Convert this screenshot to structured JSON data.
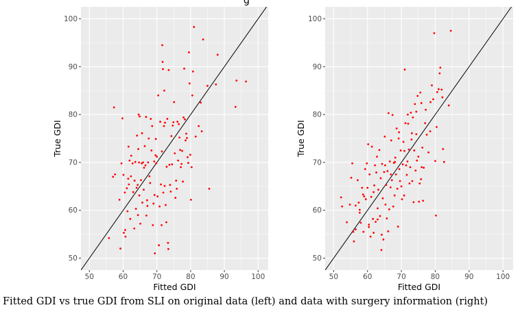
{
  "figure": {
    "caption": "Fitted GDI vs true GDI from SLI on original data (left) and data with surgery information (right)",
    "top_title_fragment": "g"
  },
  "colors": {
    "panel_bg": "#ebebeb",
    "gridline": "#ffffff",
    "point": "#ff0000",
    "reference_line": "#000000"
  },
  "chart_data": [
    {
      "type": "scatter",
      "name": "original data (left)",
      "xlabel": "Fitted GDI",
      "ylabel": "True GDI",
      "xlim": [
        47.5,
        103
      ],
      "ylim": [
        47.5,
        102.5
      ],
      "xticks": [
        50,
        60,
        70,
        80,
        90,
        100
      ],
      "yticks": [
        50,
        60,
        70,
        80,
        90,
        100
      ],
      "grid": true,
      "reference_line": "y = x",
      "points": [
        [
          55.8,
          54.2
        ],
        [
          57.0,
          67.0
        ],
        [
          57.3,
          81.5
        ],
        [
          57.6,
          67.5
        ],
        [
          58.9,
          62.2
        ],
        [
          59.2,
          52.0
        ],
        [
          59.5,
          69.8
        ],
        [
          59.8,
          79.2
        ],
        [
          60.1,
          67.4
        ],
        [
          60.2,
          55.3
        ],
        [
          60.5,
          63.7
        ],
        [
          60.6,
          55.9
        ],
        [
          60.7,
          54.5
        ],
        [
          61.1,
          64.6
        ],
        [
          61.3,
          59.8
        ],
        [
          61.5,
          66.6
        ],
        [
          61.6,
          73.3
        ],
        [
          61.7,
          65.4
        ],
        [
          61.9,
          70.4
        ],
        [
          62.1,
          58.2
        ],
        [
          62.3,
          67.1
        ],
        [
          62.4,
          71.4
        ],
        [
          62.8,
          69.8
        ],
        [
          63.0,
          63.8
        ],
        [
          63.3,
          56.2
        ],
        [
          63.4,
          66.2
        ],
        [
          63.6,
          70.1
        ],
        [
          63.8,
          60.3
        ],
        [
          64.0,
          64.7
        ],
        [
          64.1,
          75.6
        ],
        [
          64.3,
          65.3
        ],
        [
          64.4,
          59.0
        ],
        [
          64.5,
          72.8
        ],
        [
          64.6,
          80.0
        ],
        [
          64.7,
          70.0
        ],
        [
          64.8,
          63.1
        ],
        [
          64.9,
          79.6
        ],
        [
          65.1,
          57.2
        ],
        [
          65.3,
          66.3
        ],
        [
          65.5,
          69.8
        ],
        [
          65.6,
          76.1
        ],
        [
          65.7,
          61.6
        ],
        [
          65.9,
          70.0
        ],
        [
          66.1,
          64.3
        ],
        [
          66.2,
          68.9
        ],
        [
          66.4,
          73.4
        ],
        [
          66.6,
          69.4
        ],
        [
          66.8,
          79.5
        ],
        [
          66.9,
          58.9
        ],
        [
          67.1,
          62.1
        ],
        [
          67.2,
          60.9
        ],
        [
          67.4,
          70.0
        ],
        [
          67.6,
          75.0
        ],
        [
          67.8,
          67.1
        ],
        [
          68.0,
          65.7
        ],
        [
          68.2,
          79.1
        ],
        [
          68.4,
          72.5
        ],
        [
          68.6,
          77.6
        ],
        [
          68.8,
          56.9
        ],
        [
          69.0,
          61.4
        ],
        [
          69.2,
          70.2
        ],
        [
          69.3,
          63.2
        ],
        [
          69.4,
          51.0
        ],
        [
          69.6,
          71.5
        ],
        [
          69.7,
          74.9
        ],
        [
          69.8,
          69.8
        ],
        [
          70.0,
          71.2
        ],
        [
          70.2,
          62.9
        ],
        [
          70.4,
          84.0
        ],
        [
          70.6,
          52.7
        ],
        [
          70.8,
          60.8
        ],
        [
          71.0,
          78.5
        ],
        [
          71.2,
          65.4
        ],
        [
          71.4,
          56.9
        ],
        [
          71.5,
          72.3
        ],
        [
          71.6,
          94.5
        ],
        [
          71.7,
          91.0
        ],
        [
          71.8,
          89.5
        ],
        [
          71.9,
          63.7
        ],
        [
          72.1,
          77.6
        ],
        [
          72.2,
          85.0
        ],
        [
          72.3,
          65.1
        ],
        [
          72.4,
          78.3
        ],
        [
          72.6,
          61.1
        ],
        [
          72.8,
          57.5
        ],
        [
          72.9,
          69.1
        ],
        [
          73.1,
          79.1
        ],
        [
          73.3,
          53.2
        ],
        [
          73.4,
          51.9
        ],
        [
          73.5,
          89.3
        ],
        [
          73.7,
          69.5
        ],
        [
          73.9,
          65.3
        ],
        [
          74.1,
          63.9
        ],
        [
          74.3,
          75.5
        ],
        [
          74.5,
          69.6
        ],
        [
          74.7,
          77.7
        ],
        [
          74.9,
          78.4
        ],
        [
          75.1,
          82.6
        ],
        [
          75.3,
          71.9
        ],
        [
          75.5,
          62.6
        ],
        [
          75.7,
          66.2
        ],
        [
          75.9,
          64.5
        ],
        [
          76.1,
          78.5
        ],
        [
          76.3,
          70.4
        ],
        [
          76.5,
          78.0
        ],
        [
          76.7,
          75.2
        ],
        [
          76.9,
          72.6
        ],
        [
          77.1,
          69.0
        ],
        [
          77.3,
          69.7
        ],
        [
          77.5,
          72.4
        ],
        [
          77.7,
          66.0
        ],
        [
          77.9,
          79.4
        ],
        [
          78.1,
          89.6
        ],
        [
          78.3,
          79.0
        ],
        [
          78.5,
          74.6
        ],
        [
          78.7,
          76.0
        ],
        [
          78.9,
          75.1
        ],
        [
          79.1,
          71.1
        ],
        [
          79.3,
          69.9
        ],
        [
          79.5,
          93.0
        ],
        [
          79.7,
          86.5
        ],
        [
          79.9,
          71.6
        ],
        [
          80.1,
          62.2
        ],
        [
          80.3,
          69.0
        ],
        [
          80.5,
          84.0
        ],
        [
          80.7,
          89.0
        ],
        [
          81.0,
          98.3
        ],
        [
          81.5,
          75.4
        ],
        [
          82.4,
          77.6
        ],
        [
          83.0,
          82.5
        ],
        [
          83.3,
          76.5
        ],
        [
          83.7,
          95.7
        ],
        [
          85.0,
          86.0
        ],
        [
          85.5,
          64.5
        ],
        [
          87.5,
          86.3
        ],
        [
          88.0,
          92.5
        ],
        [
          93.3,
          81.6
        ],
        [
          93.6,
          87.1
        ],
        [
          96.4,
          86.9
        ]
      ]
    },
    {
      "type": "scatter",
      "name": "data with surgery information (right)",
      "xlabel": "Fitted GDI",
      "ylabel": "True GDI",
      "xlim": [
        47.5,
        103
      ],
      "ylim": [
        47.5,
        102.5
      ],
      "xticks": [
        50,
        60,
        70,
        80,
        90,
        100
      ],
      "yticks": [
        50,
        60,
        70,
        80,
        90,
        100
      ],
      "grid": true,
      "reference_line": "y = x",
      "points": [
        [
          52.2,
          62.7
        ],
        [
          52.5,
          60.8
        ],
        [
          53.9,
          57.5
        ],
        [
          54.8,
          61.2
        ],
        [
          55.2,
          66.8
        ],
        [
          55.5,
          69.8
        ],
        [
          55.8,
          55.5
        ],
        [
          56.0,
          53.5
        ],
        [
          56.5,
          61.0
        ],
        [
          57.1,
          66.3
        ],
        [
          57.4,
          61.6
        ],
        [
          57.7,
          60.1
        ],
        [
          58.0,
          57.4
        ],
        [
          58.4,
          64.7
        ],
        [
          58.7,
          63.3
        ],
        [
          59.0,
          62.9
        ],
        [
          59.3,
          68.6
        ],
        [
          59.5,
          62.3
        ],
        [
          59.8,
          69.8
        ],
        [
          60.0,
          64.7
        ],
        [
          60.2,
          73.8
        ],
        [
          60.4,
          56.5
        ],
        [
          60.6,
          67.5
        ],
        [
          60.9,
          54.5
        ],
        [
          61.1,
          62.8
        ],
        [
          61.3,
          73.3
        ],
        [
          61.6,
          58.2
        ],
        [
          61.8,
          63.8
        ],
        [
          62.0,
          65.2
        ],
        [
          62.2,
          69.4
        ],
        [
          62.4,
          57.6
        ],
        [
          62.6,
          67.9
        ],
        [
          62.8,
          71.2
        ],
        [
          63.0,
          60.4
        ],
        [
          63.2,
          64.3
        ],
        [
          63.5,
          72.6
        ],
        [
          63.7,
          58.8
        ],
        [
          63.9,
          66.7
        ],
        [
          64.1,
          51.7
        ],
        [
          64.3,
          69.7
        ],
        [
          64.5,
          62.5
        ],
        [
          64.7,
          53.9
        ],
        [
          64.9,
          68.0
        ],
        [
          65.1,
          75.4
        ],
        [
          65.3,
          61.2
        ],
        [
          65.5,
          65.3
        ],
        [
          65.7,
          58.3
        ],
        [
          65.9,
          68.2
        ],
        [
          66.1,
          55.6
        ],
        [
          66.2,
          80.3
        ],
        [
          66.4,
          60.2
        ],
        [
          66.6,
          70.2
        ],
        [
          66.8,
          64.8
        ],
        [
          67.0,
          74.6
        ],
        [
          67.2,
          66.3
        ],
        [
          67.4,
          79.9
        ],
        [
          67.6,
          60.8
        ],
        [
          67.8,
          69.9
        ],
        [
          68.0,
          63.1
        ],
        [
          68.2,
          71.0
        ],
        [
          68.4,
          67.5
        ],
        [
          68.6,
          77.1
        ],
        [
          68.8,
          64.5
        ],
        [
          69.0,
          56.6
        ],
        [
          69.2,
          75.0
        ],
        [
          69.4,
          68.6
        ],
        [
          69.6,
          66.1
        ],
        [
          69.8,
          72.5
        ],
        [
          70.0,
          65.0
        ],
        [
          70.2,
          62.3
        ],
        [
          70.4,
          69.6
        ],
        [
          70.6,
          74.3
        ],
        [
          70.8,
          63.1
        ],
        [
          71.0,
          89.4
        ],
        [
          71.2,
          78.2
        ],
        [
          71.4,
          69.4
        ],
        [
          71.6,
          67.4
        ],
        [
          71.8,
          70.2
        ],
        [
          72.0,
          78.1
        ],
        [
          72.2,
          72.7
        ],
        [
          72.4,
          65.6
        ],
        [
          72.6,
          69.0
        ],
        [
          72.8,
          80.4
        ],
        [
          73.0,
          74.8
        ],
        [
          73.2,
          66.1
        ],
        [
          73.4,
          79.4
        ],
        [
          73.6,
          61.7
        ],
        [
          73.8,
          72.5
        ],
        [
          74.0,
          82.2
        ],
        [
          74.2,
          68.3
        ],
        [
          74.4,
          75.9
        ],
        [
          74.6,
          70.4
        ],
        [
          74.8,
          83.9
        ],
        [
          75.0,
          71.2
        ],
        [
          75.2,
          61.8
        ],
        [
          75.4,
          65.6
        ],
        [
          75.6,
          84.6
        ],
        [
          75.8,
          66.5
        ],
        [
          76.0,
          69.0
        ],
        [
          76.2,
          73.1
        ],
        [
          76.4,
          62.0
        ],
        [
          76.6,
          68.9
        ],
        [
          77.0,
          78.2
        ],
        [
          77.5,
          75.8
        ],
        [
          78.0,
          72.1
        ],
        [
          78.5,
          76.5
        ],
        [
          79.0,
          86.1
        ],
        [
          79.4,
          83.2
        ],
        [
          79.7,
          97.0
        ],
        [
          80.0,
          70.3
        ],
        [
          80.2,
          58.9
        ],
        [
          80.6,
          84.7
        ],
        [
          81.0,
          85.3
        ],
        [
          81.3,
          88.6
        ],
        [
          81.5,
          89.8
        ],
        [
          81.9,
          85.2
        ],
        [
          82.3,
          72.8
        ],
        [
          82.6,
          70.1
        ],
        [
          84.0,
          81.9
        ],
        [
          84.6,
          97.5
        ],
        [
          56.5,
          56.0
        ],
        [
          57.7,
          59.5
        ],
        [
          58.8,
          55.5
        ],
        [
          60.4,
          57.0
        ],
        [
          61.8,
          55.3
        ],
        [
          63.0,
          58.1
        ],
        [
          64.2,
          54.9
        ],
        [
          65.2,
          69.4
        ],
        [
          66.9,
          67.5
        ],
        [
          68.1,
          70.1
        ],
        [
          69.3,
          76.3
        ],
        [
          70.9,
          72.4
        ],
        [
          71.9,
          80.0
        ],
        [
          73.1,
          76.1
        ],
        [
          74.4,
          80.6
        ],
        [
          75.9,
          82.4
        ],
        [
          77.2,
          81.0
        ],
        [
          78.6,
          82.6
        ],
        [
          80.4,
          77.4
        ],
        [
          82.1,
          83.6
        ]
      ]
    }
  ]
}
